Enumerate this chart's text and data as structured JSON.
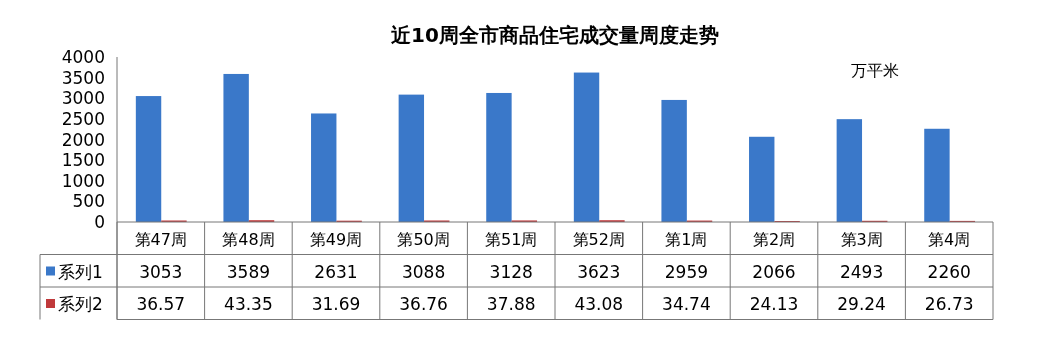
{
  "chart_data": {
    "type": "bar",
    "title": "近10周全市商品住宅成交量周度走势",
    "annotations": [
      "万平米"
    ],
    "categories": [
      "第47周",
      "第48周",
      "第49周",
      "第50周",
      "第51周",
      "第52周",
      "第1周",
      "第2周",
      "第3周",
      "第4周"
    ],
    "series": [
      {
        "name": "系列1",
        "color": "#3a78c9",
        "values": [
          3053,
          3589,
          2631,
          3088,
          3128,
          3623,
          2959,
          2066,
          2493,
          2260
        ]
      },
      {
        "name": "系列2",
        "color": "#c0393b",
        "values": [
          36.57,
          43.35,
          31.69,
          36.76,
          37.88,
          43.08,
          34.74,
          24.13,
          29.24,
          26.73
        ]
      }
    ],
    "ylim": [
      0,
      4000
    ],
    "yticks": [
      0,
      500,
      1000,
      1500,
      2000,
      2500,
      3000,
      3500,
      4000
    ],
    "data_labels": true,
    "legend": "bottom",
    "grid": false
  }
}
